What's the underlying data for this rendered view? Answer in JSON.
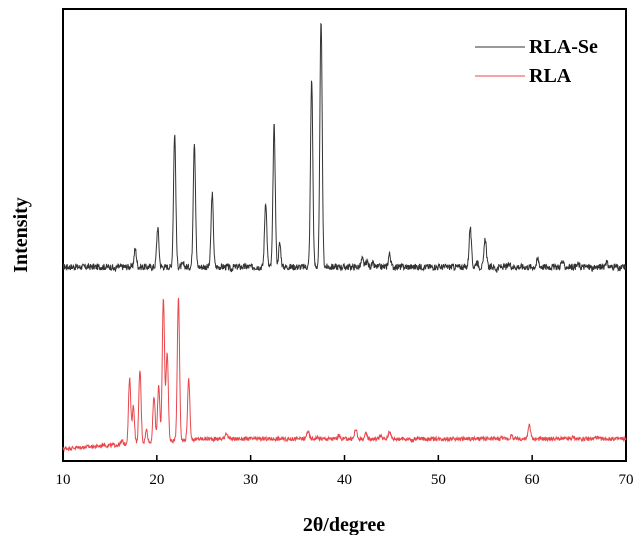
{
  "chart_data": {
    "type": "line",
    "title": "",
    "xlabel": "2θ/degree",
    "ylabel": "Intensity",
    "xlim": [
      10,
      70
    ],
    "x_ticks": [
      10,
      20,
      30,
      40,
      50,
      60,
      70
    ],
    "x_tick_labels": [
      "10",
      "20",
      "30",
      "40",
      "50",
      "60",
      "70"
    ],
    "y_ticks_shown": false,
    "grid": false,
    "legend_position": "top-right",
    "series": [
      {
        "name": "RLA-Se",
        "color": "#333333",
        "offset": "upper",
        "baseline": 0.05,
        "peaks": [
          [
            15.5,
            0.04
          ],
          [
            17.7,
            0.12
          ],
          [
            20.1,
            0.2
          ],
          [
            21.9,
            0.56
          ],
          [
            22.8,
            0.06
          ],
          [
            24.0,
            0.53
          ],
          [
            25.9,
            0.33
          ],
          [
            27.9,
            0.04
          ],
          [
            28.5,
            0.05
          ],
          [
            31.6,
            0.3
          ],
          [
            32.5,
            0.59
          ],
          [
            33.1,
            0.14
          ],
          [
            36.5,
            0.77
          ],
          [
            37.5,
            1.0
          ],
          [
            40.4,
            0.05
          ],
          [
            41.9,
            0.08
          ],
          [
            42.4,
            0.07
          ],
          [
            43.0,
            0.06
          ],
          [
            44.8,
            0.1
          ],
          [
            47.3,
            0.05
          ],
          [
            49.0,
            0.05
          ],
          [
            53.4,
            0.2
          ],
          [
            54.1,
            0.07
          ],
          [
            55.0,
            0.16
          ],
          [
            56.2,
            0.04
          ],
          [
            57.6,
            0.06
          ],
          [
            58.6,
            0.05
          ],
          [
            60.6,
            0.08
          ],
          [
            61.8,
            0.05
          ],
          [
            63.2,
            0.07
          ],
          [
            64.9,
            0.06
          ],
          [
            66.5,
            0.04
          ],
          [
            67.9,
            0.07
          ],
          [
            69.3,
            0.04
          ]
        ]
      },
      {
        "name": "RLA",
        "color": "#e8474c",
        "offset": "lower",
        "baseline": 0.05,
        "peaks": [
          [
            14.3,
            0.06
          ],
          [
            15.8,
            0.05
          ],
          [
            16.3,
            0.07
          ],
          [
            17.1,
            0.45
          ],
          [
            17.5,
            0.28
          ],
          [
            18.2,
            0.5
          ],
          [
            18.9,
            0.13
          ],
          [
            19.7,
            0.33
          ],
          [
            20.2,
            0.4
          ],
          [
            20.7,
            0.93
          ],
          [
            21.1,
            0.6
          ],
          [
            22.3,
            0.93
          ],
          [
            23.4,
            0.42
          ],
          [
            26.7,
            0.05
          ],
          [
            27.4,
            0.09
          ],
          [
            36.1,
            0.1
          ],
          [
            37.1,
            0.06
          ],
          [
            39.4,
            0.07
          ],
          [
            41.2,
            0.11
          ],
          [
            42.3,
            0.08
          ],
          [
            43.8,
            0.07
          ],
          [
            44.8,
            0.1
          ],
          [
            47.2,
            0.04
          ],
          [
            52.8,
            0.05
          ],
          [
            55.2,
            0.05
          ],
          [
            56.8,
            0.06
          ],
          [
            57.8,
            0.07
          ],
          [
            59.7,
            0.14
          ],
          [
            61.3,
            0.05
          ],
          [
            63.0,
            0.05
          ],
          [
            64.4,
            0.06
          ],
          [
            66.8,
            0.06
          ],
          [
            68.2,
            0.05
          ]
        ]
      }
    ]
  }
}
